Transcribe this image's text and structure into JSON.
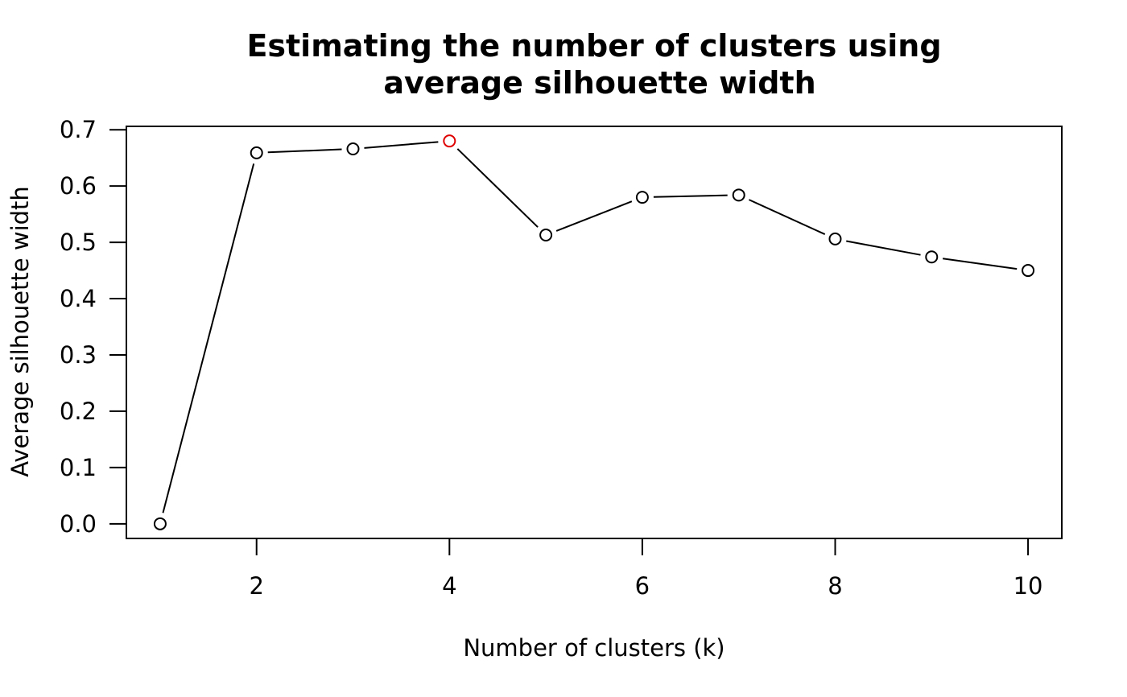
{
  "chart_data": {
    "type": "line",
    "title_lines": [
      "Estimating the number of clusters using",
      "average silhouette width"
    ],
    "xlabel": "Number of clusters (k)",
    "ylabel": "Average silhouette width",
    "x": [
      1,
      2,
      3,
      4,
      5,
      6,
      7,
      8,
      9,
      10
    ],
    "series": [
      {
        "values": [
          0.0,
          0.659,
          0.666,
          0.68,
          0.513,
          0.58,
          0.584,
          0.506,
          0.474,
          0.45
        ]
      }
    ],
    "highlight_x": 4,
    "xlim": [
      0.65,
      10.35
    ],
    "ylim": [
      -0.026,
      0.706
    ],
    "xticks": [
      2,
      4,
      6,
      8,
      10
    ],
    "xtick_labels": [
      "2",
      "4",
      "6",
      "8",
      "10"
    ],
    "yticks": [
      0.0,
      0.1,
      0.2,
      0.3,
      0.4,
      0.5,
      0.6,
      0.7
    ],
    "ytick_labels": [
      "0.0",
      "0.1",
      "0.2",
      "0.3",
      "0.4",
      "0.5",
      "0.6",
      "0.7"
    ],
    "grid": false,
    "legend": "none",
    "colors": {
      "line": "#000000",
      "point": "#000000",
      "highlight": "#df0000",
      "background": "#ffffff"
    }
  }
}
